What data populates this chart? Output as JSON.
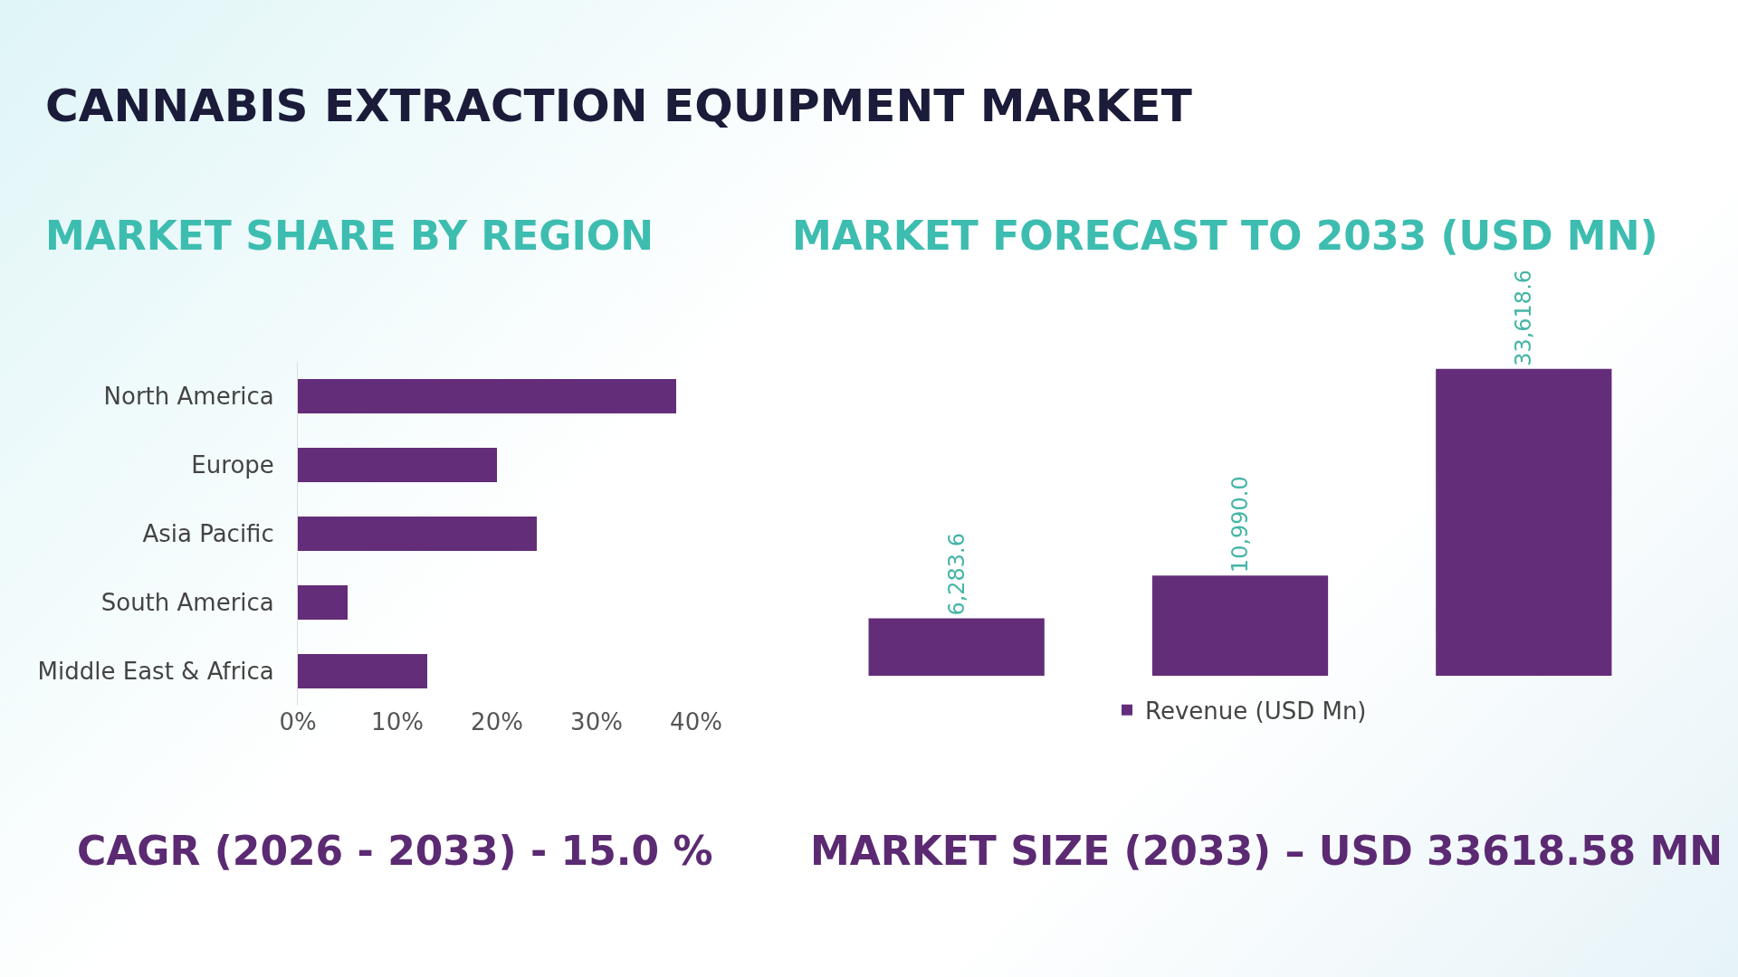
{
  "chart_data": [
    {
      "type": "bar",
      "title": "CANNABIS EXTRACTION EQUIPMENT MARKET",
      "subtitle": "MARKET SHARE BY REGION",
      "orientation": "horizontal",
      "categories": [
        "North America",
        "Europe",
        "Asia Pacific",
        "South America",
        "Middle East & Africa"
      ],
      "values": [
        38,
        20,
        24,
        5,
        13
      ],
      "color": "#642d7a",
      "xlim": [
        0,
        40
      ],
      "xticks": [
        {
          "value": 0,
          "label": "0%"
        },
        {
          "value": 10,
          "label": "10%"
        },
        {
          "value": 20,
          "label": "20%"
        },
        {
          "value": 30,
          "label": "30%"
        },
        {
          "value": 40,
          "label": "40%"
        }
      ],
      "annotations": [
        "CAGR (2026 - 2033) - 15.0 %"
      ]
    },
    {
      "type": "bar",
      "subtitle": "MARKET FORECAST TO 2033 (USD MN)",
      "categories": [
        null,
        null,
        null
      ],
      "series": [
        {
          "name": "Revenue (USD Mn)",
          "color": "#642d7a",
          "values": [
            6283.6,
            10990.0,
            33618.6
          ],
          "value_labels": [
            "6,283.6",
            "10,990.0",
            "33,618.6"
          ]
        }
      ],
      "legend": "bottom",
      "annotations": [
        "MARKET SIZE (2033) – USD 33618.58 MN"
      ]
    }
  ]
}
